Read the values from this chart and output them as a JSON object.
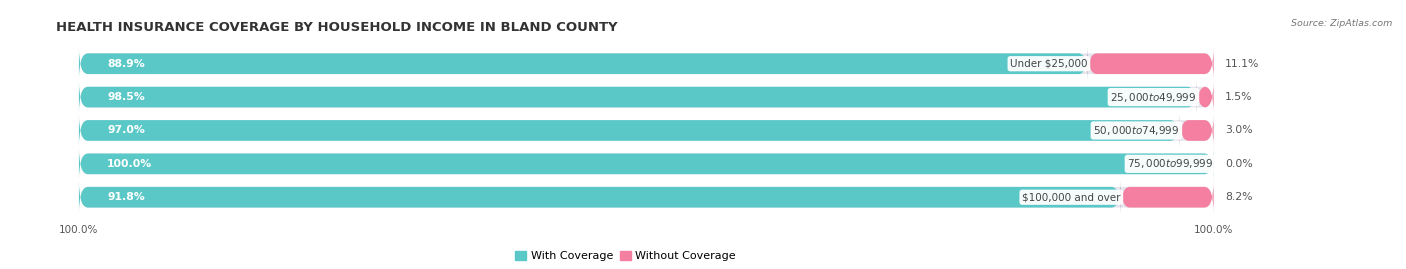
{
  "title": "HEALTH INSURANCE COVERAGE BY HOUSEHOLD INCOME IN BLAND COUNTY",
  "source": "Source: ZipAtlas.com",
  "categories": [
    "Under $25,000",
    "$25,000 to $49,999",
    "$50,000 to $74,999",
    "$75,000 to $99,999",
    "$100,000 and over"
  ],
  "with_coverage": [
    88.9,
    98.5,
    97.0,
    100.0,
    91.8
  ],
  "without_coverage": [
    11.1,
    1.5,
    3.0,
    0.0,
    8.2
  ],
  "color_with": "#5bc8c8",
  "color_without": "#f47fa0",
  "color_bar_bg": "#e5e5ed",
  "background_color": "#ffffff",
  "title_fontsize": 9.5,
  "label_fontsize": 7.8,
  "legend_fontsize": 8,
  "bar_height": 0.62,
  "bar_gap": 0.38,
  "rounding": 0.8
}
